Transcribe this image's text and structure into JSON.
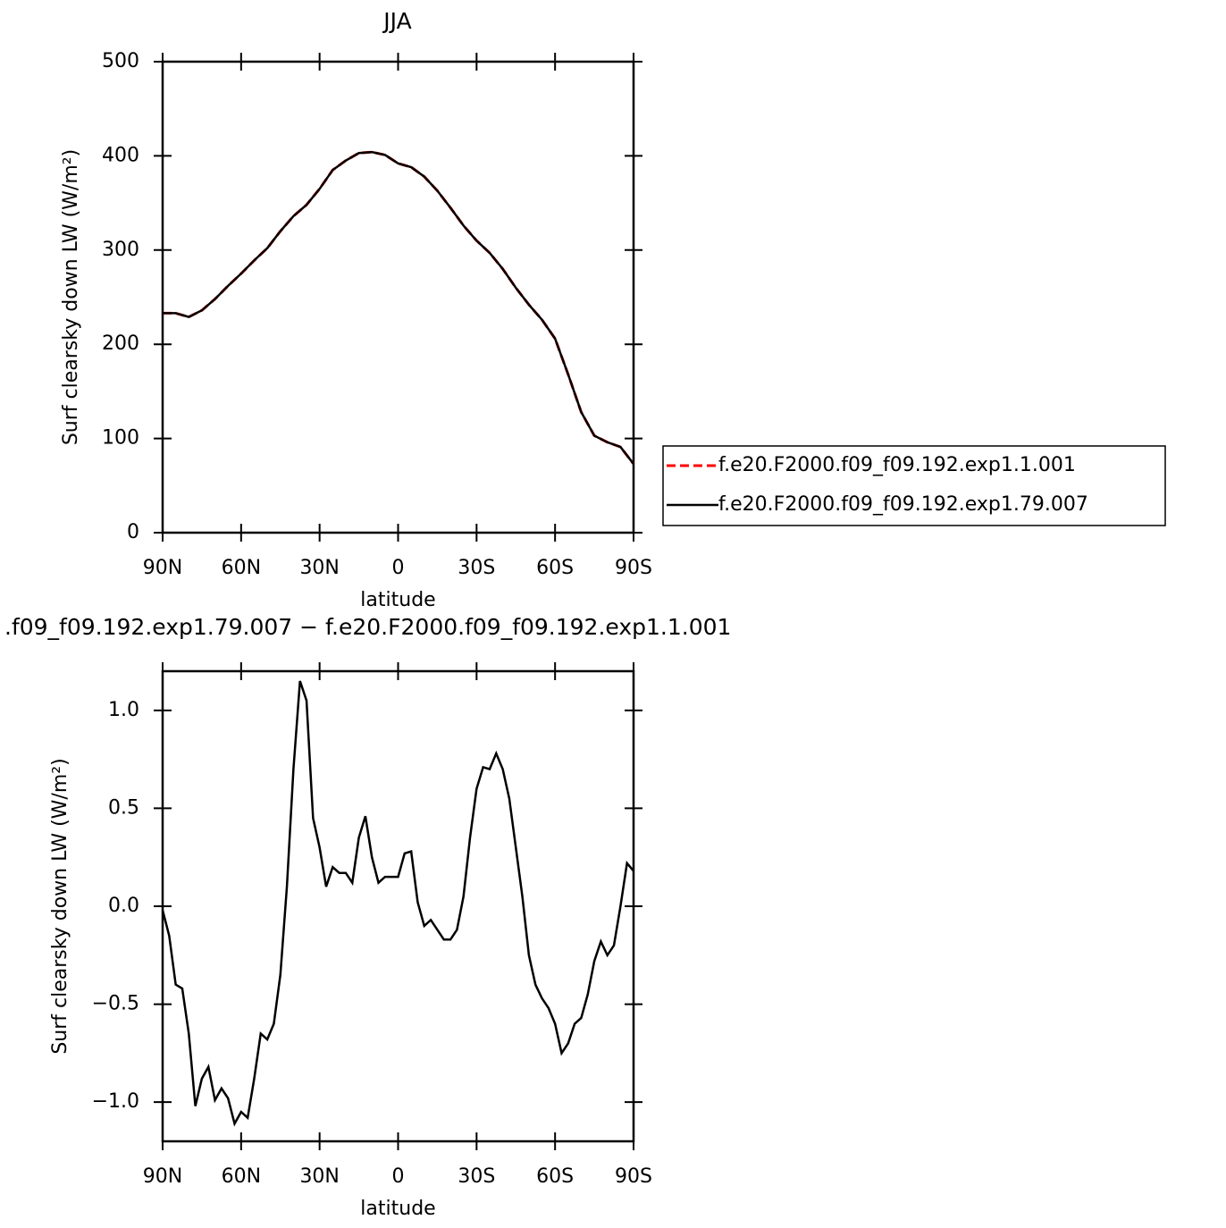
{
  "chart_data": [
    {
      "type": "line",
      "title": "JJA",
      "x_label": "latitude",
      "y_label": "Surf clearsky down LW (W/m²)",
      "x": [
        90,
        85,
        80,
        75,
        70,
        65,
        60,
        55,
        50,
        45,
        40,
        35,
        30,
        25,
        20,
        15,
        10,
        5,
        0,
        -5,
        -10,
        -15,
        -20,
        -25,
        -30,
        -35,
        -40,
        -45,
        -50,
        -55,
        -60,
        -65,
        -70,
        -75,
        -80,
        -85,
        -90
      ],
      "series": [
        {
          "name": "f.e20.F2000.f09_f09.192.exp1.1.001",
          "color": "#ff0000",
          "line_style": "dashed",
          "values": [
            233,
            233,
            229,
            236,
            248,
            262,
            275,
            289,
            302,
            320,
            336,
            348,
            365,
            385,
            395,
            403,
            404,
            401,
            392,
            388,
            378,
            363,
            345,
            326,
            310,
            297,
            280,
            260,
            242,
            226,
            206,
            168,
            128,
            103,
            96,
            91,
            73
          ]
        },
        {
          "name": "f.e20.F2000.f09_f09.192.exp1.79.007",
          "color": "#000000",
          "line_style": "solid",
          "values": [
            233,
            233,
            229,
            236,
            248,
            262,
            275,
            289,
            302,
            320,
            336,
            348,
            365,
            385,
            395,
            403,
            404,
            401,
            392,
            388,
            378,
            363,
            345,
            326,
            310,
            297,
            280,
            260,
            242,
            226,
            206,
            168,
            128,
            103,
            96,
            91,
            73
          ]
        }
      ],
      "xlim": [
        90,
        -90
      ],
      "xticks": [
        {
          "value": 90,
          "label": "90N"
        },
        {
          "value": 60,
          "label": "60N"
        },
        {
          "value": 30,
          "label": "30N"
        },
        0,
        {
          "value": -30,
          "label": "30S"
        },
        {
          "value": -60,
          "label": "60S"
        },
        {
          "value": -90,
          "label": "90S"
        }
      ],
      "ylim": [
        0,
        500
      ],
      "yticks": [
        0,
        100,
        200,
        300,
        400,
        500
      ],
      "legend": "right"
    },
    {
      "type": "line",
      "title": ".f09_f09.192.exp1.79.007 − f.e20.F2000.f09_f09.192.exp1.1.001",
      "x_label": "latitude",
      "y_label": "Surf clearsky down LW (W/m²)",
      "x": [
        90,
        87.5,
        85,
        82.5,
        80,
        77.5,
        75,
        72.5,
        70,
        67.5,
        65,
        62.5,
        60,
        57.5,
        55,
        52.5,
        50,
        47.5,
        45,
        42.5,
        40,
        37.5,
        35,
        32.5,
        30,
        27.5,
        25,
        22.5,
        20,
        17.5,
        15,
        12.5,
        10,
        7.5,
        5,
        2.5,
        0,
        -2.5,
        -5,
        -7.5,
        -10,
        -12.5,
        -15,
        -17.5,
        -20,
        -22.5,
        -25,
        -27.5,
        -30,
        -32.5,
        -35,
        -37.5,
        -40,
        -42.5,
        -45,
        -47.5,
        -50,
        -52.5,
        -55,
        -57.5,
        -60,
        -62.5,
        -65,
        -67.5,
        -70,
        -72.5,
        -75,
        -77.5,
        -80,
        -82.5,
        -85,
        -87.5,
        -90
      ],
      "series": [
        {
          "color": "#000000",
          "line_style": "solid",
          "values": [
            -0.02,
            -0.15,
            -0.4,
            -0.42,
            -0.65,
            -1.02,
            -0.88,
            -0.82,
            -0.99,
            -0.93,
            -0.98,
            -1.11,
            -1.05,
            -1.08,
            -0.88,
            -0.65,
            -0.68,
            -0.6,
            -0.35,
            0.1,
            0.7,
            1.15,
            1.05,
            0.45,
            0.3,
            0.1,
            0.2,
            0.17,
            0.17,
            0.12,
            0.35,
            0.46,
            0.25,
            0.12,
            0.15,
            0.15,
            0.15,
            0.27,
            0.28,
            0.02,
            -0.1,
            -0.07,
            -0.12,
            -0.17,
            -0.17,
            -0.12,
            0.05,
            0.35,
            0.6,
            0.71,
            0.7,
            0.78,
            0.7,
            0.55,
            0.3,
            0.05,
            -0.25,
            -0.4,
            -0.47,
            -0.52,
            -0.6,
            -0.75,
            -0.7,
            -0.6,
            -0.57,
            -0.45,
            -0.28,
            -0.18,
            -0.25,
            -0.2,
            0.0,
            0.22,
            0.18
          ]
        }
      ],
      "xlim": [
        90,
        -90
      ],
      "xticks": [
        {
          "value": 90,
          "label": "90N"
        },
        {
          "value": 60,
          "label": "60N"
        },
        {
          "value": 30,
          "label": "30N"
        },
        0,
        {
          "value": -30,
          "label": "30S"
        },
        {
          "value": -60,
          "label": "60S"
        },
        {
          "value": -90,
          "label": "90S"
        }
      ],
      "ylim": [
        -1.2,
        1.2
      ],
      "yticks": [
        {
          "value": -1.0,
          "label": "−1.0"
        },
        {
          "value": -0.5,
          "label": "−0.5"
        },
        {
          "value": 0.0,
          "label": "0.0"
        },
        {
          "value": 0.5,
          "label": "0.5"
        },
        {
          "value": 1.0,
          "label": "1.0"
        }
      ]
    }
  ]
}
